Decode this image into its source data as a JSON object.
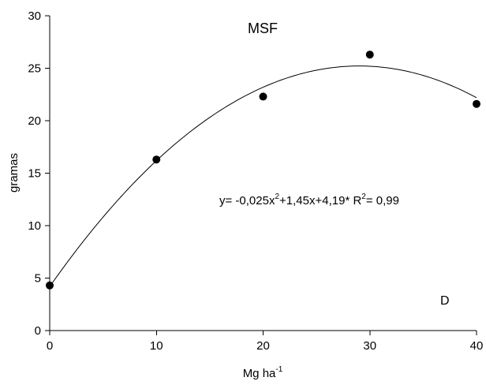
{
  "chart_data": {
    "type": "scatter",
    "title": "MSF",
    "xlabel": {
      "base": "Mg ha",
      "sup": "-1"
    },
    "ylabel": "gramas",
    "panel_letter": "D",
    "xlim": [
      0,
      40
    ],
    "ylim": [
      0,
      30
    ],
    "xticks": [
      0,
      10,
      20,
      30,
      40
    ],
    "yticks": [
      0,
      5,
      10,
      15,
      20,
      25,
      30
    ],
    "grid": false,
    "series": [
      {
        "points": [
          {
            "x": 0,
            "y": 4.3
          },
          {
            "x": 10,
            "y": 16.3
          },
          {
            "x": 20,
            "y": 22.3
          },
          {
            "x": 30,
            "y": 26.3
          },
          {
            "x": 40,
            "y": 21.6
          }
        ]
      }
    ],
    "fit": {
      "type": "quadratic",
      "coefficients": {
        "a": -0.025,
        "b": 1.45,
        "c": 4.19
      },
      "x_range": [
        0,
        40
      ]
    },
    "equation": {
      "part1": "y= -0,025x",
      "sup1": "2",
      "part2": "+1,45x+4,19*  R",
      "sup2": "2",
      "part3": "= 0,99"
    }
  }
}
